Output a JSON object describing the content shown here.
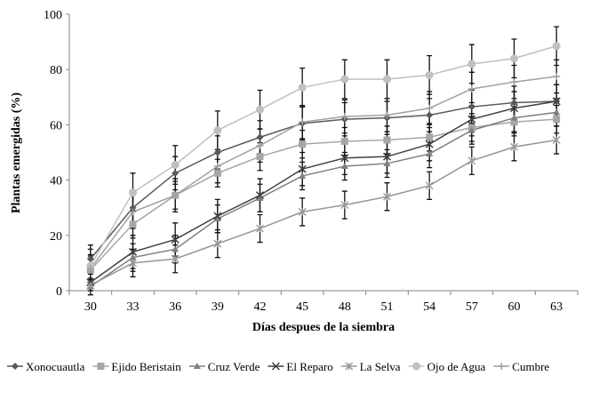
{
  "chart_data": {
    "type": "line",
    "title": "",
    "xlabel": "Días despues de la siembra",
    "ylabel": "Plantas emergidas (%)",
    "x": [
      30,
      33,
      36,
      39,
      42,
      45,
      48,
      51,
      54,
      57,
      60,
      63
    ],
    "ylim": [
      0,
      100
    ],
    "yticks": [
      0,
      20,
      40,
      60,
      80,
      100
    ],
    "grid": false,
    "legend_position": "bottom",
    "series": [
      {
        "name": "Xonocuautla",
        "marker": "diamond",
        "color": "#595959",
        "values": [
          11.5,
          30,
          42.5,
          50,
          55.5,
          60.5,
          62,
          62.5,
          63.5,
          66.5,
          68,
          68.5
        ],
        "errors": [
          5,
          6,
          6,
          6,
          6,
          6,
          6,
          6,
          6,
          6,
          6,
          6
        ]
      },
      {
        "name": "Ejido Beristain",
        "marker": "square",
        "color": "#a6a6a6",
        "values": [
          7.5,
          24,
          34.5,
          42.5,
          48.5,
          53,
          54,
          54.5,
          55.5,
          59,
          61,
          62
        ],
        "errors": [
          5,
          5,
          5,
          5,
          5,
          5,
          5,
          5,
          5,
          5,
          5,
          5
        ]
      },
      {
        "name": "Cruz Verde",
        "marker": "triangle",
        "color": "#7f7f7f",
        "values": [
          1.5,
          12,
          15,
          26,
          33.5,
          41.5,
          45,
          46,
          49.5,
          58,
          62.5,
          64.5
        ],
        "errors": [
          3,
          5,
          5,
          5,
          5,
          5,
          5,
          5,
          5,
          5,
          5,
          5
        ]
      },
      {
        "name": "El Reparo",
        "marker": "x",
        "color": "#404040",
        "values": [
          3,
          14,
          18.5,
          27,
          34.5,
          44,
          48,
          48.5,
          53,
          62,
          66,
          68.5
        ],
        "errors": [
          3,
          6,
          6,
          6,
          6,
          6,
          6,
          6,
          6,
          6,
          6,
          6
        ]
      },
      {
        "name": "La Selva",
        "marker": "asterisk",
        "color": "#969696",
        "values": [
          2,
          10,
          11.5,
          17,
          22.5,
          28.5,
          31,
          34,
          38,
          47,
          52,
          54.5
        ],
        "errors": [
          2,
          5,
          5,
          5,
          5,
          5,
          5,
          5,
          5,
          5,
          5,
          5
        ]
      },
      {
        "name": "Ojo de Agua",
        "marker": "circle",
        "color": "#c0c0c0",
        "values": [
          9,
          35.5,
          45.5,
          58,
          65.5,
          73.5,
          76.5,
          76.5,
          78,
          82,
          84,
          88.5
        ],
        "errors": [
          6,
          7,
          7,
          7,
          7,
          7,
          7,
          7,
          7,
          7,
          7,
          7
        ]
      },
      {
        "name": "Cumbre",
        "marker": "plus",
        "color": "#a0a0a0",
        "values": [
          8,
          28.5,
          34.5,
          45,
          52.5,
          61,
          63,
          63.5,
          66,
          73,
          75.5,
          77.5
        ],
        "errors": [
          5,
          6,
          6,
          6,
          6,
          6,
          6,
          6,
          6,
          6,
          6,
          6
        ]
      }
    ]
  }
}
